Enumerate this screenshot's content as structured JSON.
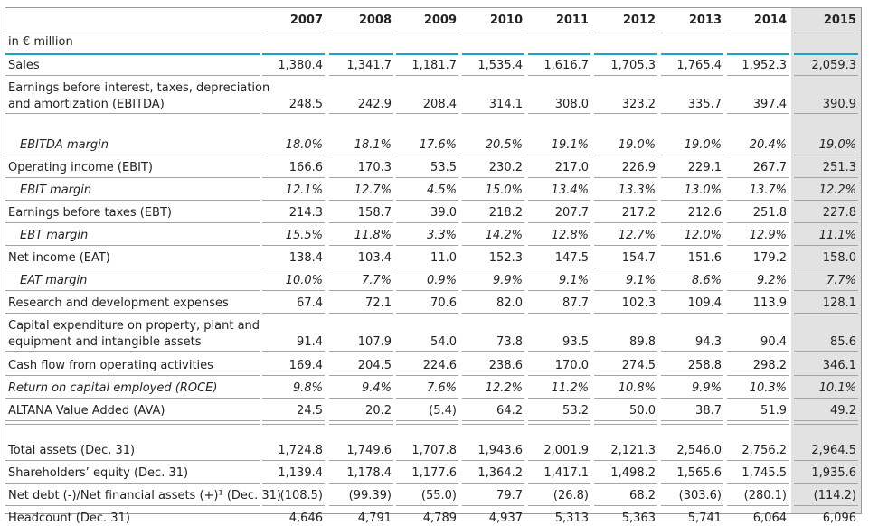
{
  "unit_label": "in € million",
  "years": [
    "2007",
    "2008",
    "2009",
    "2010",
    "2011",
    "2012",
    "2013",
    "2014",
    "2015"
  ],
  "rows": [
    {
      "label": "Sales",
      "values": [
        "1,380.4",
        "1,341.7",
        "1,181.7",
        "1,535.4",
        "1,616.7",
        "1,705.3",
        "1,765.4",
        "1,952.3",
        "2,059.3"
      ]
    },
    {
      "label": "Earnings before interest, taxes, depreciation",
      "label2": "and amortization (EBITDA)",
      "values": [
        "248.5",
        "242.9",
        "208.4",
        "314.1",
        "308.0",
        "323.2",
        "335.7",
        "397.4",
        "390.9"
      ]
    },
    {
      "label": "EBITDA margin",
      "italic": true,
      "indent": true,
      "values": [
        "18.0%",
        "18.1%",
        "17.6%",
        "20.5%",
        "19.1%",
        "19.0%",
        "19.0%",
        "20.4%",
        "19.0%"
      ]
    },
    {
      "label": "Operating income (EBIT)",
      "values": [
        "166.6",
        "170.3",
        "53.5",
        "230.2",
        "217.0",
        "226.9",
        "229.1",
        "267.7",
        "251.3"
      ]
    },
    {
      "label": "EBIT margin",
      "italic": true,
      "indent": true,
      "values": [
        "12.1%",
        "12.7%",
        "4.5%",
        "15.0%",
        "13.4%",
        "13.3%",
        "13.0%",
        "13.7%",
        "12.2%"
      ]
    },
    {
      "label": "Earnings before taxes (EBT)",
      "values": [
        "214.3",
        "158.7",
        "39.0",
        "218.2",
        "207.7",
        "217.2",
        "212.6",
        "251.8",
        "227.8"
      ]
    },
    {
      "label": "EBT margin",
      "italic": true,
      "indent": true,
      "values": [
        "15.5%",
        "11.8%",
        "3.3%",
        "14.2%",
        "12.8%",
        "12.7%",
        "12.0%",
        "12.9%",
        "11.1%"
      ]
    },
    {
      "label": "Net income (EAT)",
      "values": [
        "138.4",
        "103.4",
        "11.0",
        "152.3",
        "147.5",
        "154.7",
        "151.6",
        "179.2",
        "158.0"
      ]
    },
    {
      "label": "EAT margin",
      "italic": true,
      "indent": true,
      "values": [
        "10.0%",
        "7.7%",
        "0.9%",
        "9.9%",
        "9.1%",
        "9.1%",
        "8.6%",
        "9.2%",
        "7.7%"
      ]
    },
    {
      "label": "Research and development expenses",
      "values": [
        "67.4",
        "72.1",
        "70.6",
        "82.0",
        "87.7",
        "102.3",
        "109.4",
        "113.9",
        "128.1"
      ]
    },
    {
      "label": "Capital expenditure on property, plant and",
      "label2": "equipment and intangible assets",
      "values": [
        "91.4",
        "107.9",
        "54.0",
        "73.8",
        "93.5",
        "89.8",
        "94.3",
        "90.4",
        "85.6"
      ]
    },
    {
      "label": "Cash flow from operating activities",
      "values": [
        "169.4",
        "204.5",
        "224.6",
        "238.6",
        "170.0",
        "274.5",
        "258.8",
        "298.2",
        "346.1"
      ]
    },
    {
      "label": "Return on capital employed (ROCE)",
      "italic": true,
      "values": [
        "9.8%",
        "9.4%",
        "7.6%",
        "12.2%",
        "11.2%",
        "10.8%",
        "9.9%",
        "10.3%",
        "10.1%"
      ]
    },
    {
      "label": "ALTANA Value Added (AVA)",
      "values": [
        "24.5",
        "20.2",
        "(5.4)",
        "64.2",
        "53.2",
        "50.0",
        "38.7",
        "51.9",
        "49.2"
      ]
    },
    {
      "label": "Total assets (Dec. 31)",
      "values": [
        "1,724.8",
        "1,749.6",
        "1,707.8",
        "1,943.6",
        "2,001.9",
        "2,121.3",
        "2,546.0",
        "2,756.2",
        "2,964.5"
      ]
    },
    {
      "label": "Shareholders’ equity (Dec. 31)",
      "values": [
        "1,139.4",
        "1,178.4",
        "1,177.6",
        "1,364.2",
        "1,417.1",
        "1,498.2",
        "1,565.6",
        "1,745.5",
        "1,935.6"
      ]
    },
    {
      "label": "Net debt (-)/Net financial assets (+)¹ (Dec. 31)",
      "values": [
        "(108.5)",
        "(99.39)",
        "(55.0)",
        "79.7",
        "(26.8)",
        "68.2",
        "(303.6)",
        "(280.1)",
        "(114.2)"
      ]
    },
    {
      "label": "Headcount (Dec. 31)",
      "values": [
        "4,646",
        "4,791",
        "4,789",
        "4,937",
        "5,313",
        "5,363",
        "5,741",
        "6,064",
        "6,096"
      ]
    }
  ],
  "colors": {
    "accent_rule": "#17a4c8",
    "highlight_column": "#e2e2e2",
    "rule": "#a3a3a3"
  }
}
